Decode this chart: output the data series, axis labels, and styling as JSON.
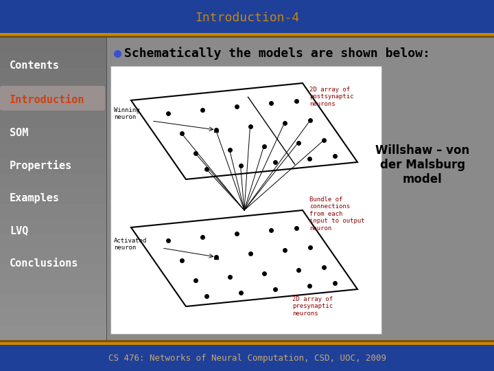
{
  "title": "Introduction-4",
  "title_color": "#C8860A",
  "title_bg": "#1f4099",
  "header_bar1": "#C8860A",
  "header_bar2": "#7a5200",
  "main_bg": "#8a8a8a",
  "left_panel_bg_top": "#707070",
  "left_panel_bg_bottom": "#606060",
  "left_highlight_bg": "#9a9090",
  "footer_bg": "#1f4099",
  "footer_text": "CS 476: Networks of Neural Computation, CSD, UOC, 2009",
  "footer_text_color": "#C8A870",
  "bullet_text": "Schematically the models are shown below:",
  "bullet_color": "#3a50d0",
  "nav_items": [
    "Contents",
    "Introduction",
    "SOM",
    "Properties",
    "Examples",
    "LVQ",
    "Conclusions"
  ],
  "nav_active": "Introduction",
  "nav_active_color": "#D04010",
  "nav_inactive_color": "#FFFFFF",
  "nav_fontsize": 11,
  "willshaw_text": "Willshaw – von\nder Malsburg\nmodel",
  "diagram_bg": "#FFFFFF",
  "diagram_label_winning": "Winning\nneuron",
  "diagram_label_activated": "Activated\nneuron",
  "diagram_label_postsynaptic": "2D array of\npostsynaptic\nneurons",
  "diagram_label_bundle": "Bundle of\nconnections\nfrom each\ninput to output\nneuron",
  "diagram_label_presynaptic": "2D array of\npresynaptic\nneurons",
  "title_fontsize": 13,
  "bullet_fontsize": 13
}
